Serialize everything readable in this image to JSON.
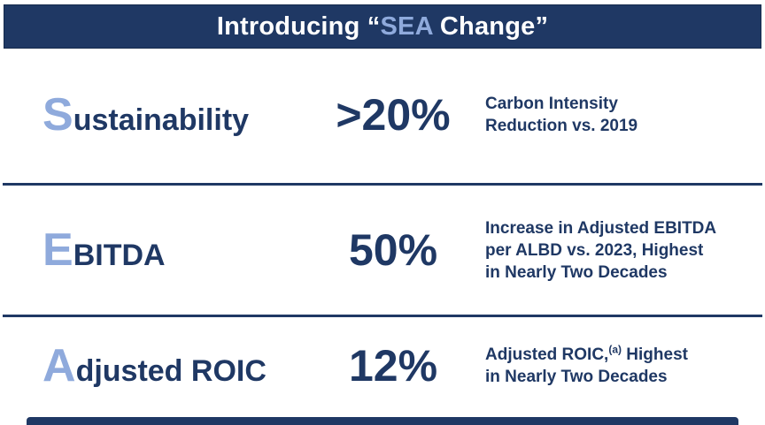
{
  "colors": {
    "navy": "#1F3864",
    "accent_light_blue": "#8FAADC",
    "background": "#FFFFFF"
  },
  "header": {
    "prefix": "Introducing “",
    "acronym": "SEA",
    "suffix": " Change”"
  },
  "rows": [
    {
      "initial": "S",
      "label_rest": "ustainability",
      "value": ">20%",
      "desc_lines": [
        "Carbon Intensity",
        "Reduction vs. 2019"
      ]
    },
    {
      "initial": "E",
      "label_rest": "BITDA",
      "value": "50%",
      "desc_lines": [
        "Increase in Adjusted EBITDA",
        "per ALBD vs. 2023, Highest",
        "in Nearly Two Decades"
      ]
    },
    {
      "initial": "A",
      "label_rest": "djusted ROIC",
      "value": "12%",
      "desc_line1_pre": "Adjusted ROIC,",
      "footnote_marker": "(a)",
      "desc_line1_post": " Highest",
      "desc_line2": "in Nearly Two Decades"
    }
  ]
}
